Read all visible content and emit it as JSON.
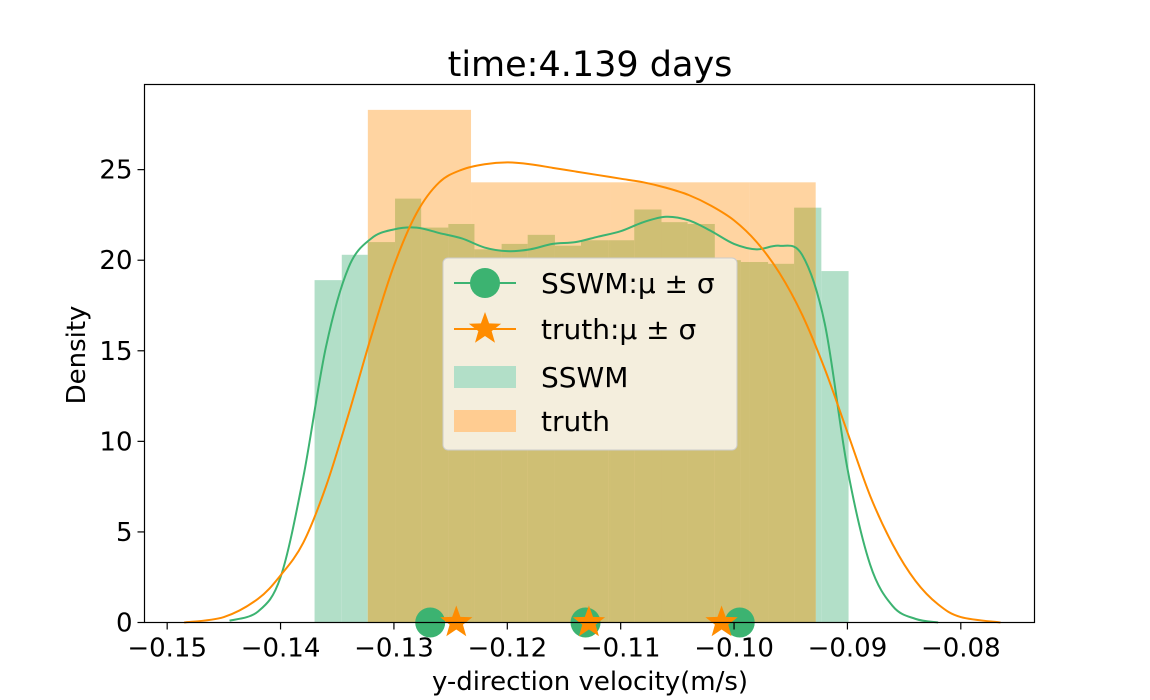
{
  "chart_data": {
    "type": "bar",
    "title": "time:4.139 days",
    "xlabel": "y-direction velocity(m/s)",
    "ylabel": "Density",
    "xlim": [
      -0.152,
      -0.0735
    ],
    "ylim": [
      0,
      29.7
    ],
    "xticks": [
      -0.15,
      -0.14,
      -0.13,
      -0.12,
      -0.11,
      -0.1,
      -0.09,
      -0.08
    ],
    "xtick_labels": [
      "−0.15",
      "−0.14",
      "−0.13",
      "−0.12",
      "−0.11",
      "−0.10",
      "−0.09",
      "−0.08"
    ],
    "yticks": [
      0,
      5,
      10,
      15,
      20,
      25
    ],
    "ytick_labels": [
      "0",
      "5",
      "10",
      "15",
      "20",
      "25"
    ],
    "grid": false,
    "legend_position": "center",
    "colors": {
      "sswm": "#3cb371",
      "truth": "#ff8c00",
      "sswm_hist": "#b2dfc8",
      "truth_hist": "#ffcc91"
    },
    "histograms": [
      {
        "name": "SSWM",
        "bins": [
          {
            "x0": -0.137,
            "x1": -0.1346,
            "density": 18.9
          },
          {
            "x0": -0.1346,
            "x1": -0.1323,
            "density": 20.3
          },
          {
            "x0": -0.1323,
            "x1": -0.1299,
            "density": 21.0
          },
          {
            "x0": -0.1299,
            "x1": -0.1276,
            "density": 23.4
          },
          {
            "x0": -0.1276,
            "x1": -0.1252,
            "density": 21.8
          },
          {
            "x0": -0.1252,
            "x1": -0.1229,
            "density": 22.0
          },
          {
            "x0": -0.1229,
            "x1": -0.1205,
            "density": 20.6
          },
          {
            "x0": -0.1205,
            "x1": -0.1182,
            "density": 20.9
          },
          {
            "x0": -0.1182,
            "x1": -0.1158,
            "density": 21.4
          },
          {
            "x0": -0.1158,
            "x1": -0.1135,
            "density": 20.8
          },
          {
            "x0": -0.1135,
            "x1": -0.1111,
            "density": 21.1
          },
          {
            "x0": -0.1111,
            "x1": -0.1088,
            "density": 21.1
          },
          {
            "x0": -0.1088,
            "x1": -0.1064,
            "density": 22.8
          },
          {
            "x0": -0.1064,
            "x1": -0.1041,
            "density": 22.1
          },
          {
            "x0": -0.1041,
            "x1": -0.1017,
            "density": 22.0
          },
          {
            "x0": -0.1017,
            "x1": -0.0994,
            "density": 20.0
          },
          {
            "x0": -0.0994,
            "x1": -0.097,
            "density": 19.9
          },
          {
            "x0": -0.097,
            "x1": -0.0947,
            "density": 19.8
          },
          {
            "x0": -0.0947,
            "x1": -0.0923,
            "density": 22.9
          },
          {
            "x0": -0.0923,
            "x1": -0.0899,
            "density": 19.4
          }
        ]
      },
      {
        "name": "truth",
        "bins": [
          {
            "x0": -0.1323,
            "x1": -0.1232,
            "density": 28.3
          },
          {
            "x0": -0.1232,
            "x1": -0.1109,
            "density": 24.3
          },
          {
            "x0": -0.1109,
            "x1": -0.0986,
            "density": 24.3
          },
          {
            "x0": -0.0986,
            "x1": -0.0928,
            "density": 24.3
          }
        ]
      }
    ],
    "series": [
      {
        "name": "SSWM",
        "x": [
          -0.1445,
          -0.142,
          -0.14,
          -0.138,
          -0.136,
          -0.134,
          -0.132,
          -0.13,
          -0.128,
          -0.126,
          -0.124,
          -0.122,
          -0.12,
          -0.118,
          -0.116,
          -0.114,
          -0.112,
          -0.11,
          -0.108,
          -0.106,
          -0.104,
          -0.102,
          -0.1,
          -0.098,
          -0.096,
          -0.094,
          -0.092,
          -0.09,
          -0.088,
          -0.086,
          -0.084,
          -0.082
        ],
        "y": [
          0.1,
          0.6,
          2.5,
          8.0,
          15.2,
          19.6,
          21.2,
          21.7,
          21.8,
          21.5,
          21.2,
          20.7,
          20.5,
          20.6,
          20.9,
          21.0,
          21.3,
          21.6,
          22.1,
          22.4,
          22.2,
          21.6,
          20.9,
          20.6,
          20.8,
          20.3,
          16.5,
          8.5,
          3.2,
          0.9,
          0.2,
          0.0
        ]
      },
      {
        "name": "truth",
        "x": [
          -0.1485,
          -0.145,
          -0.142,
          -0.14,
          -0.138,
          -0.136,
          -0.134,
          -0.132,
          -0.13,
          -0.128,
          -0.126,
          -0.124,
          -0.122,
          -0.12,
          -0.118,
          -0.116,
          -0.114,
          -0.112,
          -0.11,
          -0.108,
          -0.106,
          -0.104,
          -0.102,
          -0.1,
          -0.098,
          -0.096,
          -0.094,
          -0.092,
          -0.09,
          -0.088,
          -0.086,
          -0.084,
          -0.082,
          -0.08,
          -0.0765
        ],
        "y": [
          0.0,
          0.3,
          1.3,
          2.6,
          4.4,
          7.5,
          11.5,
          15.8,
          19.7,
          22.6,
          24.3,
          25.0,
          25.3,
          25.4,
          25.3,
          25.1,
          24.9,
          24.7,
          24.5,
          24.3,
          24.0,
          23.6,
          23.0,
          22.2,
          21.0,
          19.3,
          17.0,
          14.0,
          10.5,
          7.0,
          4.3,
          2.3,
          1.0,
          0.3,
          0.0
        ]
      }
    ],
    "markers": [
      {
        "name": "SSWM:μ ± σ",
        "shape": "circle",
        "x": [
          -0.1268,
          -0.1131,
          -0.0995
        ],
        "y": [
          0,
          0,
          0
        ]
      },
      {
        "name": "truth:μ ± σ",
        "shape": "star",
        "x": [
          -0.1245,
          -0.1128,
          -0.1011
        ],
        "y": [
          0,
          0,
          0
        ]
      }
    ],
    "legend": [
      {
        "label": "SSWM:μ ± σ",
        "kind": "line-circle",
        "color": "#3cb371"
      },
      {
        "label": "truth:μ ± σ",
        "kind": "line-star",
        "color": "#ff8c00"
      },
      {
        "label": "SSWM",
        "kind": "patch",
        "color": "#b2dfc8"
      },
      {
        "label": "truth",
        "kind": "patch",
        "color": "#ffcc91"
      }
    ]
  }
}
